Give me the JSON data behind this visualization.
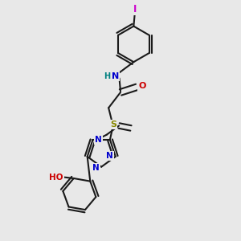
{
  "bg_color": "#e8e8e8",
  "bond_color": "#1a1a1a",
  "bond_width": 1.5,
  "dbo": 0.012,
  "atom_colors": {
    "N": "#0000cc",
    "O": "#cc0000",
    "S": "#888800",
    "I": "#cc00cc",
    "H": "#008080",
    "C": "#1a1a1a"
  },
  "fs": 8.0,
  "fig_size": [
    3.0,
    3.0
  ],
  "dpi": 100
}
